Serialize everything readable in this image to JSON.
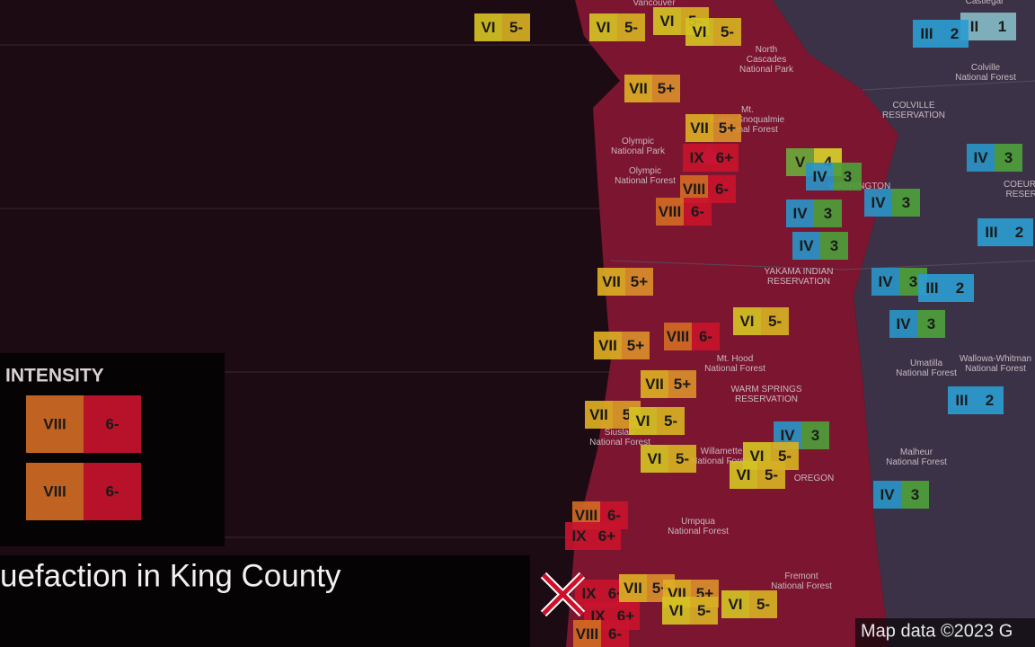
{
  "palette": {
    "II": "#86b9c6",
    "III": "#2d9bd0",
    "IV": "#2a93c6",
    "V": "#6ea83c",
    "VI": "#d4c224",
    "VII": "#dcae24",
    "VIII": "#d06a24",
    "IX": "#c8142e",
    "1": "#86b9c6",
    "2": "#2d9bd0",
    "3": "#4e9e3c",
    "4": "#d6d02c",
    "5-": "#d6b024",
    "5": "#d89a28",
    "5+": "#d88e2c",
    "6-": "#c8142e",
    "6+": "#c8142e"
  },
  "markers": [
    {
      "intensity": "VI",
      "shaking": "5-"
    },
    {
      "intensity": "VI",
      "shaking": "5-"
    },
    {
      "intensity": "VI",
      "shaking": "5-"
    },
    {
      "intensity": "VI",
      "shaking": "5-"
    },
    {
      "intensity": "II",
      "shaking": "1"
    },
    {
      "intensity": "III",
      "shaking": "2"
    },
    {
      "intensity": "VII",
      "shaking": "5+"
    },
    {
      "intensity": "VII",
      "shaking": "5+"
    },
    {
      "intensity": "IX",
      "shaking": "6+"
    },
    {
      "intensity": "V",
      "shaking": "4"
    },
    {
      "intensity": "IV",
      "shaking": "3"
    },
    {
      "intensity": "VIII",
      "shaking": "6-"
    },
    {
      "intensity": "VIII",
      "shaking": "6-"
    },
    {
      "intensity": "IV",
      "shaking": "3"
    },
    {
      "intensity": "IV",
      "shaking": "3"
    },
    {
      "intensity": "IV",
      "shaking": "3"
    },
    {
      "intensity": "IV",
      "shaking": "3"
    },
    {
      "intensity": "III",
      "shaking": "2"
    },
    {
      "intensity": "VII",
      "shaking": "5+"
    },
    {
      "intensity": "IV",
      "shaking": "3"
    },
    {
      "intensity": "III",
      "shaking": "2"
    },
    {
      "intensity": "VII",
      "shaking": "5+"
    },
    {
      "intensity": "VIII",
      "shaking": "6-"
    },
    {
      "intensity": "VI",
      "shaking": "5-"
    },
    {
      "intensity": "IV",
      "shaking": "3"
    },
    {
      "intensity": "VII",
      "shaking": "5+"
    },
    {
      "intensity": "VII",
      "shaking": "5"
    },
    {
      "intensity": "VI",
      "shaking": "5-"
    },
    {
      "intensity": "IV",
      "shaking": "3"
    },
    {
      "intensity": "III",
      "shaking": "2"
    },
    {
      "intensity": "VI",
      "shaking": "5-"
    },
    {
      "intensity": "VI",
      "shaking": "5-"
    },
    {
      "intensity": "VI",
      "shaking": "5-"
    },
    {
      "intensity": "IV",
      "shaking": "3"
    },
    {
      "intensity": "VIII",
      "shaking": "6-"
    },
    {
      "intensity": "IX",
      "shaking": "6+"
    },
    {
      "intensity": "IX",
      "shaking": "6+"
    },
    {
      "intensity": "VII",
      "shaking": "5+"
    },
    {
      "intensity": "VII",
      "shaking": "5+"
    },
    {
      "intensity": "VI",
      "shaking": "5-"
    },
    {
      "intensity": "VI",
      "shaking": "5-"
    },
    {
      "intensity": "IX",
      "shaking": "6+"
    },
    {
      "intensity": "VIII",
      "shaking": "6-"
    }
  ],
  "map_labels": [
    [
      "Vancouver"
    ],
    [
      "Castlegar"
    ],
    [
      "North",
      "Cascades",
      "National Park"
    ],
    [
      "Colville",
      "National Forest"
    ],
    [
      "COLVILLE",
      "RESERVATION"
    ],
    [
      "Olympic",
      "National Park"
    ],
    [
      "Olympic",
      "National Forest"
    ],
    [
      "Mt.",
      "Baker-Snoqualmie",
      "National Forest"
    ],
    [
      "WASHINGTON"
    ],
    [
      "COEUR D",
      "RESERV"
    ],
    [
      "YAKAMA INDIAN",
      "RESERVATION"
    ],
    [
      "Mt. Hood",
      "National Forest"
    ],
    [
      "WARM SPRINGS",
      "RESERVATION"
    ],
    [
      "Umatilla",
      "National Forest"
    ],
    [
      "Wallowa-Whitman",
      "National Forest"
    ],
    [
      "Siuslaw",
      "National Forest"
    ],
    [
      "Willamette",
      "National Forest"
    ],
    [
      "OREGON"
    ],
    [
      "Malheur",
      "National Forest"
    ],
    [
      "Umpqua",
      "National Forest"
    ],
    [
      "Fremont",
      "National Forest"
    ]
  ],
  "legend": {
    "title": "INTENSITY",
    "rows": [
      {
        "intensity": "VIII",
        "shaking": "6-"
      },
      {
        "intensity": "VIII",
        "shaking": "6-"
      }
    ]
  },
  "caption": "uefaction in King County",
  "attribution": "Map data ©2023 G"
}
